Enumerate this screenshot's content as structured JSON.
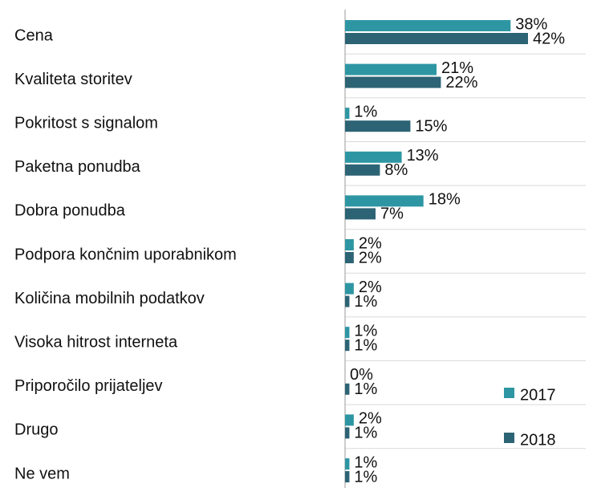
{
  "chart_data": {
    "type": "bar",
    "orientation": "horizontal",
    "categories": [
      "Cena",
      "Kvaliteta storitev",
      "Pokritost s signalom",
      "Paketna ponudba",
      "Dobra ponudba",
      "Podpora končnim uporabnikom",
      "Količina mobilnih podatkov",
      "Visoka hitrost interneta",
      "Priporočilo prijateljev",
      "Drugo",
      "Ne vem"
    ],
    "series": [
      {
        "name": "2017",
        "color": "#2e96a3",
        "values": [
          38,
          21,
          1,
          13,
          18,
          2,
          2,
          1,
          0,
          2,
          1
        ],
        "value_labels": [
          "38%",
          "21%",
          "1%",
          "13%",
          "18%",
          "2%",
          "2%",
          "1%",
          "0%",
          "2%",
          "1%"
        ]
      },
      {
        "name": "2018",
        "color": "#2d6475",
        "values": [
          42,
          22,
          15,
          8,
          7,
          2,
          1,
          1,
          1,
          1,
          1
        ],
        "value_labels": [
          "42%",
          "22%",
          "15%",
          "8%",
          "7%",
          "2%",
          "1%",
          "1%",
          "1%",
          "1%",
          "1%"
        ]
      }
    ],
    "legend": "lower right"
  }
}
